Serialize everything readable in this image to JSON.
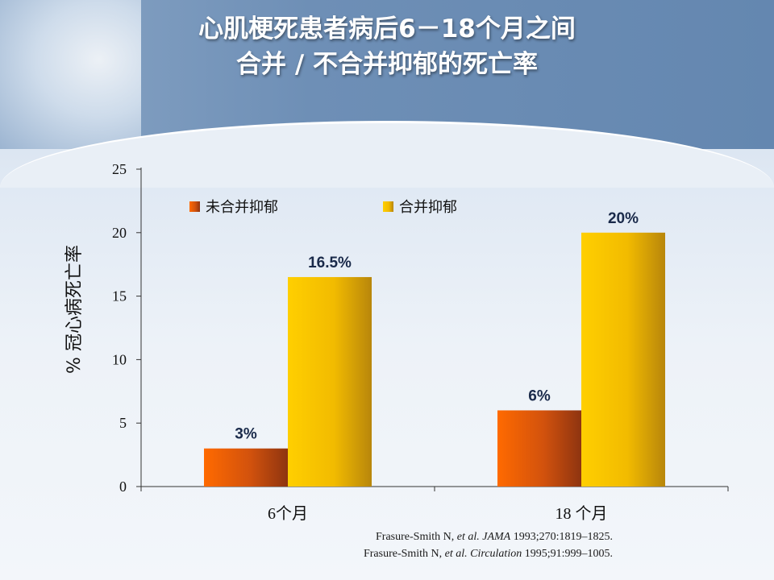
{
  "title": {
    "line1": "心肌梗死患者病后6－18个月之间",
    "line2": "合并 / 不合并抑郁的死亡率"
  },
  "references": [
    {
      "a": "Frasure-Smith N, ",
      "b": "et al. JAMA",
      "c": " 1993;270:1819–1825."
    },
    {
      "a": "Frasure-Smith N, ",
      "b": "et al.  Circulation",
      "c": " 1995;91:999–1005."
    }
  ],
  "chart_data": {
    "type": "bar",
    "categories": [
      "6个月",
      "18  个月"
    ],
    "series": [
      {
        "name": "未合并抑郁",
        "values": [
          3,
          6
        ],
        "labels": [
          "3%",
          "6%"
        ],
        "color": "#e05a10"
      },
      {
        "name": "合并抑郁",
        "values": [
          16.5,
          20
        ],
        "labels": [
          "16.5%",
          "20%"
        ],
        "color": "#f3b800"
      }
    ],
    "ylabel": "% 冠心病死亡率",
    "ylim": [
      0,
      25
    ],
    "yticks": [
      0,
      5,
      10,
      15,
      20,
      25
    ],
    "legend_position": "top-left",
    "grid": false
  }
}
